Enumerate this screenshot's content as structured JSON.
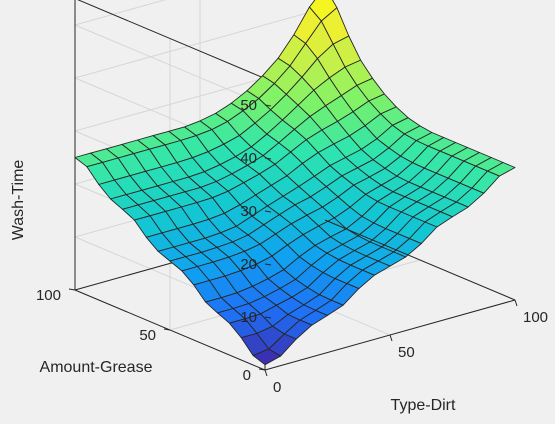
{
  "chart_data": {
    "type": "surface",
    "xlabel": "Type-Dirt",
    "ylabel": "Amount-Grease",
    "zlabel": "Wash-Time",
    "xlim": [
      0,
      100
    ],
    "ylim": [
      0,
      100
    ],
    "zlim": [
      0,
      55
    ],
    "xticks": [
      0,
      50,
      100
    ],
    "yticks": [
      0,
      50,
      100
    ],
    "zticks": [
      10,
      20,
      30,
      40,
      50
    ],
    "xtick_labels": [
      "0",
      "50",
      "100"
    ],
    "ytick_labels": [
      "0",
      "50",
      "100"
    ],
    "ztick_labels": [
      "10",
      "20",
      "30",
      "40",
      "50"
    ],
    "grid": true,
    "colormap": [
      "#3e26a8",
      "#1f6ff5",
      "#10a2f0",
      "#14c8d2",
      "#2ee5ae",
      "#7af26a",
      "#c4f04a",
      "#f0ef30",
      "#f9fb15"
    ],
    "edge_color": "#262626",
    "grid_x": [
      0,
      6.25,
      12.5,
      18.75,
      25,
      31.25,
      37.5,
      43.75,
      50,
      56.25,
      62.5,
      68.75,
      75,
      81.25,
      87.5,
      93.75,
      100
    ],
    "grid_y": [
      0,
      6.25,
      12.5,
      18.75,
      25,
      31.25,
      37.5,
      43.75,
      50,
      56.25,
      62.5,
      68.75,
      75,
      81.25,
      87.5,
      93.75,
      100
    ],
    "rows_by_y": [
      [
        1.0,
        1.8,
        4.2,
        6.0,
        7.0,
        8.1,
        10.4,
        12.1,
        13.0,
        13.9,
        15.6,
        17.9,
        19.0,
        20.0,
        21.8,
        24.2,
        25.0
      ],
      [
        1.8,
        2.2,
        4.2,
        6.0,
        7.0,
        8.1,
        10.4,
        12.1,
        13.0,
        13.9,
        15.6,
        17.9,
        19.0,
        20.0,
        21.8,
        24.2,
        25.0
      ],
      [
        4.2,
        4.2,
        4.7,
        6.1,
        7.1,
        8.2,
        10.4,
        12.1,
        13.0,
        13.9,
        15.6,
        17.9,
        19.0,
        20.0,
        21.8,
        24.2,
        25.0
      ],
      [
        6.0,
        6.0,
        6.1,
        6.9,
        7.6,
        8.6,
        10.6,
        12.2,
        13.1,
        13.9,
        15.6,
        17.9,
        19.0,
        20.0,
        21.8,
        24.2,
        25.0
      ],
      [
        7.0,
        7.0,
        7.1,
        7.6,
        8.3,
        9.2,
        11.0,
        12.5,
        13.3,
        14.1,
        15.7,
        17.9,
        19.0,
        20.0,
        21.8,
        24.2,
        25.0
      ],
      [
        8.1,
        8.1,
        8.2,
        8.6,
        9.2,
        10.1,
        11.7,
        13.0,
        13.8,
        14.5,
        16.0,
        18.0,
        19.0,
        20.0,
        21.8,
        24.2,
        25.0
      ],
      [
        10.4,
        10.4,
        10.4,
        10.6,
        11.0,
        11.7,
        13.0,
        14.1,
        14.9,
        15.6,
        16.8,
        18.4,
        19.3,
        20.2,
        21.9,
        24.2,
        25.0
      ],
      [
        12.1,
        12.1,
        12.1,
        12.2,
        12.5,
        13.0,
        14.1,
        15.2,
        16.0,
        16.7,
        17.8,
        19.2,
        19.9,
        20.7,
        22.2,
        24.3,
        25.0
      ],
      [
        13.0,
        13.0,
        13.0,
        13.1,
        13.3,
        13.8,
        14.9,
        16.0,
        17.0,
        17.7,
        18.8,
        20.0,
        20.7,
        21.4,
        22.8,
        24.6,
        25.3
      ],
      [
        13.9,
        13.9,
        13.9,
        13.9,
        14.1,
        14.5,
        15.6,
        16.7,
        17.7,
        18.7,
        19.8,
        21.0,
        21.7,
        22.4,
        23.6,
        25.3,
        25.9
      ],
      [
        15.6,
        15.6,
        15.6,
        15.6,
        15.7,
        16.0,
        16.8,
        17.8,
        18.8,
        19.8,
        21.3,
        22.5,
        23.3,
        24.0,
        25.1,
        26.5,
        27.0
      ],
      [
        17.9,
        17.9,
        17.9,
        17.9,
        17.9,
        18.0,
        18.4,
        19.2,
        20.0,
        21.0,
        22.5,
        24.0,
        25.0,
        25.8,
        26.8,
        28.0,
        28.5
      ],
      [
        19.0,
        19.0,
        19.0,
        19.0,
        19.0,
        19.0,
        19.3,
        19.9,
        20.7,
        21.7,
        23.3,
        25.0,
        26.6,
        27.8,
        28.9,
        30.0,
        30.5
      ],
      [
        20.0,
        20.0,
        20.0,
        20.0,
        20.0,
        20.0,
        20.2,
        20.7,
        21.4,
        22.4,
        24.0,
        25.8,
        27.8,
        29.8,
        31.3,
        32.5,
        33.0
      ],
      [
        21.8,
        21.8,
        21.8,
        21.8,
        21.8,
        21.8,
        21.9,
        22.2,
        22.8,
        23.6,
        25.1,
        26.8,
        28.9,
        31.3,
        34.0,
        35.9,
        36.6
      ],
      [
        24.2,
        24.2,
        24.2,
        24.2,
        24.2,
        24.2,
        24.2,
        24.3,
        24.6,
        25.3,
        26.5,
        28.0,
        30.0,
        32.5,
        35.9,
        39.3,
        41.0
      ],
      [
        25.0,
        25.0,
        25.0,
        25.0,
        25.0,
        25.0,
        25.0,
        25.0,
        25.3,
        25.9,
        27.0,
        28.5,
        30.5,
        33.0,
        36.6,
        41.0,
        44.0
      ]
    ]
  }
}
